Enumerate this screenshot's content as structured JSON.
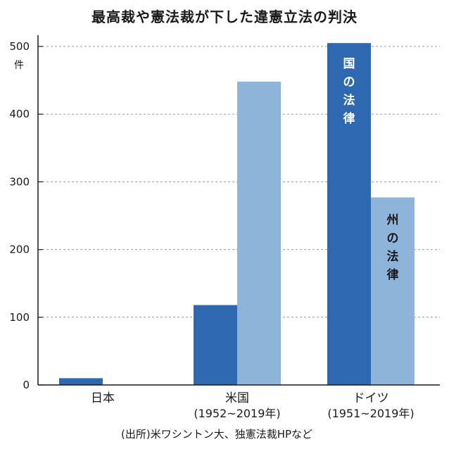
{
  "title": "最高裁や憲法裁が下した違憲立法の判決",
  "y_unit": "件",
  "source": "(出所)米ワシントン大、独憲法裁HPなど",
  "colors": {
    "national": "#2d68b0",
    "state": "#8fb4da",
    "grid": "#999999",
    "axis": "#1a1a1a"
  },
  "chart_data": {
    "type": "bar",
    "categories": [
      "日本",
      "米国",
      "ドイツ"
    ],
    "category_sublabels": [
      "",
      "(1952~2019年)",
      "(1951~2019年)"
    ],
    "series": [
      {
        "name": "国の法律",
        "values": [
          10,
          118,
          505
        ]
      },
      {
        "name": "州の法律",
        "values": [
          null,
          448,
          277
        ]
      }
    ],
    "ylim": [
      0,
      500
    ],
    "yticks": [
      0,
      100,
      200,
      300,
      400,
      500
    ],
    "grid": "dashed, y only",
    "legend": "labels inside bars"
  }
}
